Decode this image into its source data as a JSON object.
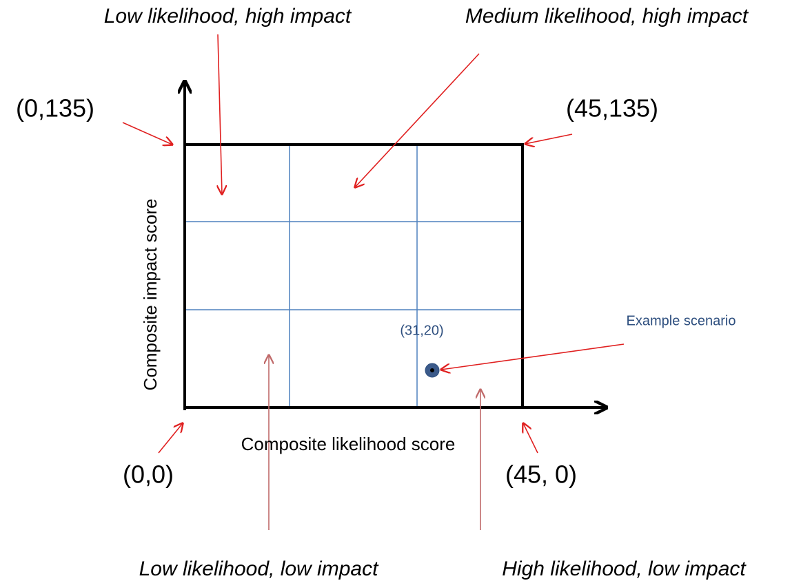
{
  "quadrant_labels": [
    "Low likelihood, high impact",
    "Medium likelihood, high impact",
    "Low likelihood, low impact",
    "High likelihood, low impact"
  ],
  "corner_labels": [
    "(0,135)",
    "(45,135)",
    "(0,0)",
    "(45, 0)"
  ],
  "axes": {
    "x_label": "Composite likelihood score",
    "y_label": "Composite impact score"
  },
  "point": {
    "label": "(31,20)",
    "annotation": "Example scenario"
  }
}
